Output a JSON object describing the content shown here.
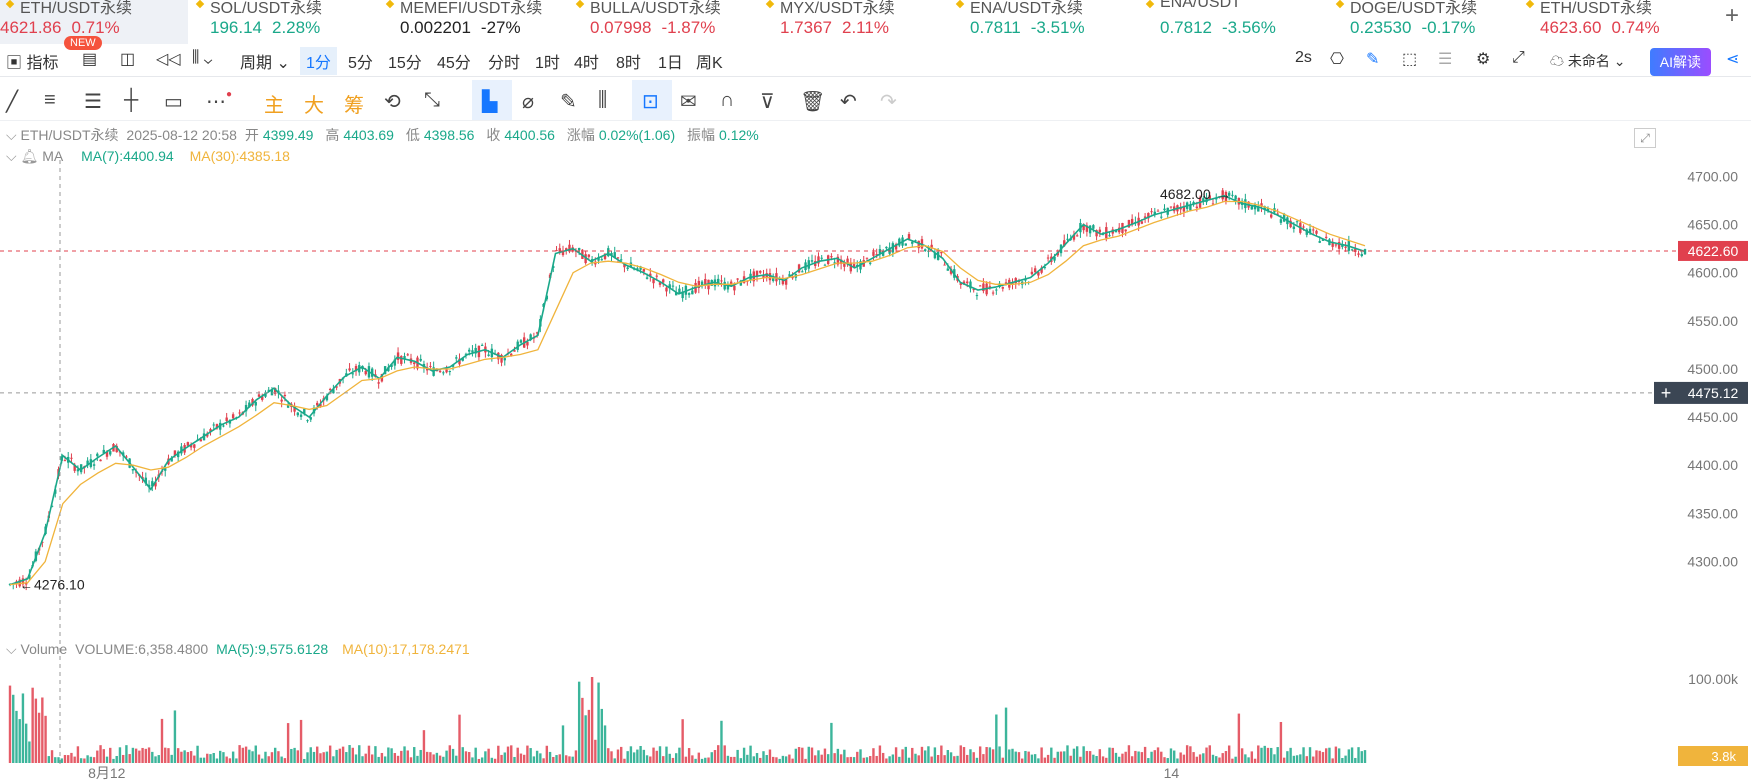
{
  "tickers": [
    {
      "symbol": "ETH/USDT永续",
      "price": "4621.86",
      "change": "0.71%",
      "dir": "down",
      "active": true
    },
    {
      "symbol": "SOL/USDT永续",
      "price": "196.14",
      "change": "2.28%",
      "dir": "up"
    },
    {
      "symbol": "MEMEFI/USDT永续",
      "price": "0.002201",
      "change": "-27%",
      "dir": "neutral"
    },
    {
      "symbol": "BULLA/USDT永续",
      "price": "0.07998",
      "change": "-1.87%",
      "dir": "down"
    },
    {
      "symbol": "MYX/USDT永续",
      "price": "1.7367",
      "change": "2.11%",
      "dir": "down"
    },
    {
      "symbol": "ENA/USDT永续",
      "price": "0.7811",
      "change": "-3.51%",
      "dir": "up"
    },
    {
      "symbol": "ENA/USDT",
      "price": "0.7812",
      "change": "-3.56%",
      "dir": "up"
    },
    {
      "symbol": "DOGE/USDT永续",
      "price": "0.23530",
      "change": "-0.17%",
      "dir": "up"
    },
    {
      "symbol": "ETH/USDT永续",
      "price": "4623.60",
      "change": "0.74%",
      "dir": "down"
    }
  ],
  "toolbar": {
    "indicator_label": "指标",
    "new_badge": "NEW",
    "period_label": "周期",
    "intervals": [
      "1分",
      "5分",
      "15分",
      "45分",
      "分时",
      "1时",
      "4时",
      "8时",
      "1日",
      "周K"
    ],
    "selected_interval": "1分",
    "refresh": "2s",
    "layout_name": "未命名",
    "ai_label": "AI解读"
  },
  "drawing_tools": {
    "main": "主",
    "big": "大",
    "chips": "筹"
  },
  "info": {
    "pair": "ETH/USDT永续",
    "datetime": "2025-08-12 20:58",
    "open_label": "开",
    "open": "4399.49",
    "high_label": "高",
    "high": "4403.69",
    "low_label": "低",
    "low": "4398.56",
    "close_label": "收",
    "close": "4400.56",
    "chg_label": "涨幅",
    "chg": "0.02%(1.06)",
    "amp_label": "振幅",
    "amp": "0.12%"
  },
  "ma": {
    "label": "MA",
    "ma7": "MA(7):4400.94",
    "ma30": "MA(30):4385.18"
  },
  "volume": {
    "label": "Volume",
    "vol": "VOLUME:6,358.4800",
    "ma5": "MA(5):9,575.6128",
    "ma10": "MA(10):17,178.2471",
    "axis_top": "100.00k",
    "current": "3.8k"
  },
  "price_axis": {
    "ticks": [
      "4700.00",
      "4650.00",
      "4600.00",
      "4550.00",
      "4500.00",
      "4450.00",
      "4400.00",
      "4350.00",
      "4300.00"
    ],
    "current_price": "4622.60",
    "crosshair_price": "4475.12"
  },
  "annotations": {
    "high": "4682.00",
    "low": "4276.10"
  },
  "chart_data": {
    "type": "line",
    "title": "",
    "series": [
      {
        "name": "MA(7)",
        "values": [
          4276,
          4282,
          4330,
          4410,
          4395,
          4408,
          4420,
          4398,
          4375,
          4405,
          4418,
          4430,
          4442,
          4450,
          4468,
          4480,
          4462,
          4450,
          4472,
          4492,
          4502,
          4490,
          4512,
          4508,
          4498,
          4502,
          4515,
          4520,
          4512,
          4525,
          4535,
          4620,
          4625,
          4612,
          4620,
          4608,
          4600,
          4590,
          4578,
          4585,
          4590,
          4586,
          4595,
          4598,
          4592,
          4605,
          4612,
          4615,
          4605,
          4615,
          4625,
          4635,
          4628,
          4615,
          4590,
          4582,
          4585,
          4590,
          4595,
          4610,
          4630,
          4650,
          4640,
          4645,
          4652,
          4660,
          4665,
          4670,
          4675,
          4680,
          4672,
          4668,
          4660,
          4650,
          4640,
          4632,
          4628,
          4622
        ]
      },
      {
        "name": "MA(30)",
        "values": [
          4276,
          4278,
          4300,
          4360,
          4380,
          4392,
          4402,
          4400,
          4395,
          4398,
          4408,
          4420,
          4430,
          4440,
          4452,
          4465,
          4462,
          4458,
          4462,
          4475,
          4488,
          4490,
          4498,
          4502,
          4500,
          4500,
          4505,
          4510,
          4512,
          4515,
          4520,
          4560,
          4600,
          4610,
          4612,
          4610,
          4605,
          4598,
          4590,
          4586,
          4588,
          4588,
          4592,
          4595,
          4594,
          4598,
          4604,
          4610,
          4610,
          4612,
          4618,
          4626,
          4628,
          4622,
          4605,
          4592,
          4588,
          4588,
          4590,
          4598,
          4612,
          4628,
          4634,
          4638,
          4645,
          4652,
          4658,
          4664,
          4668,
          4674,
          4674,
          4670,
          4664,
          4656,
          4648,
          4640,
          4634,
          4628
        ]
      }
    ],
    "ylim": [
      4260,
      4715
    ],
    "x_ticks": [
      "",
      "8月12",
      "",
      "",
      "",
      "",
      "",
      "",
      "",
      "",
      "",
      "",
      "14",
      "",
      ""
    ],
    "legend": "top-left",
    "grid": true
  }
}
